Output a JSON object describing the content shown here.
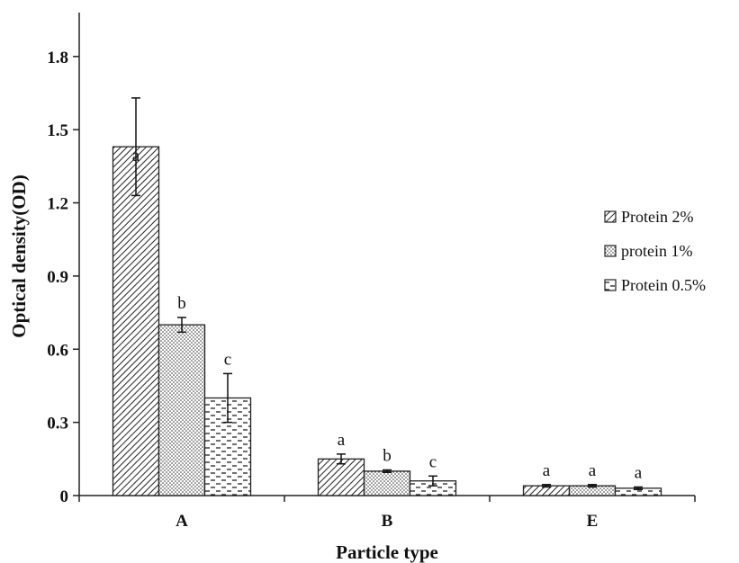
{
  "chart_data": {
    "type": "bar",
    "title": "",
    "xlabel": "Particle type",
    "ylabel": "Optical density(OD)",
    "categories": [
      "A",
      "B",
      "E"
    ],
    "y_ticks": [
      "0",
      "0.3",
      "0.6",
      "0.9",
      "1.2",
      "1.5",
      "1.8"
    ],
    "ylim": [
      0,
      1.98
    ],
    "grid": false,
    "legend_position": "right",
    "series": [
      {
        "name": "Protein 2%",
        "pattern": "diagonal-hatch",
        "values": [
          1.43,
          0.15,
          0.04
        ],
        "errors": [
          0.2,
          0.02,
          0.005
        ],
        "letters": [
          "a",
          "a",
          "a"
        ]
      },
      {
        "name": "protein 1%",
        "pattern": "dots",
        "values": [
          0.7,
          0.1,
          0.04
        ],
        "errors": [
          0.03,
          0.005,
          0.005
        ],
        "letters": [
          "b",
          "b",
          "a"
        ]
      },
      {
        "name": "Protein 0.5%",
        "pattern": "dashes",
        "values": [
          0.4,
          0.06,
          0.03
        ],
        "errors": [
          0.1,
          0.02,
          0.005
        ],
        "letters": [
          "c",
          "c",
          "a"
        ]
      }
    ]
  }
}
